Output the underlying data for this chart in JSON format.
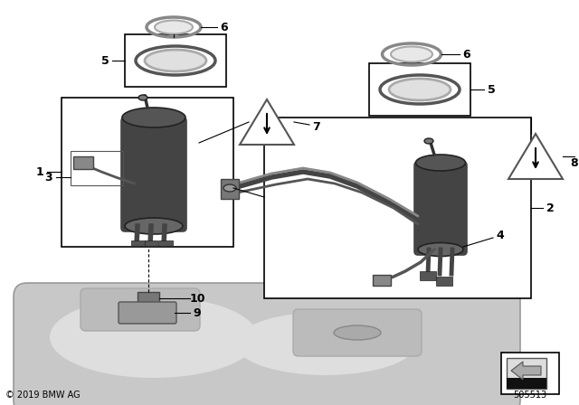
{
  "bg_color": "#ffffff",
  "copyright": "© 2019 BMW AG",
  "part_number": "505513",
  "font_size_labels": 9,
  "font_size_small": 7,
  "line_color": "#000000",
  "dark_gray": "#444444",
  "mid_gray": "#666666",
  "light_gray": "#cccccc",
  "tank_gray": "#c8c8c8",
  "tank_light": "#dedede",
  "ring_gray": "#aaaaaa",
  "ring_dark": "#888888"
}
